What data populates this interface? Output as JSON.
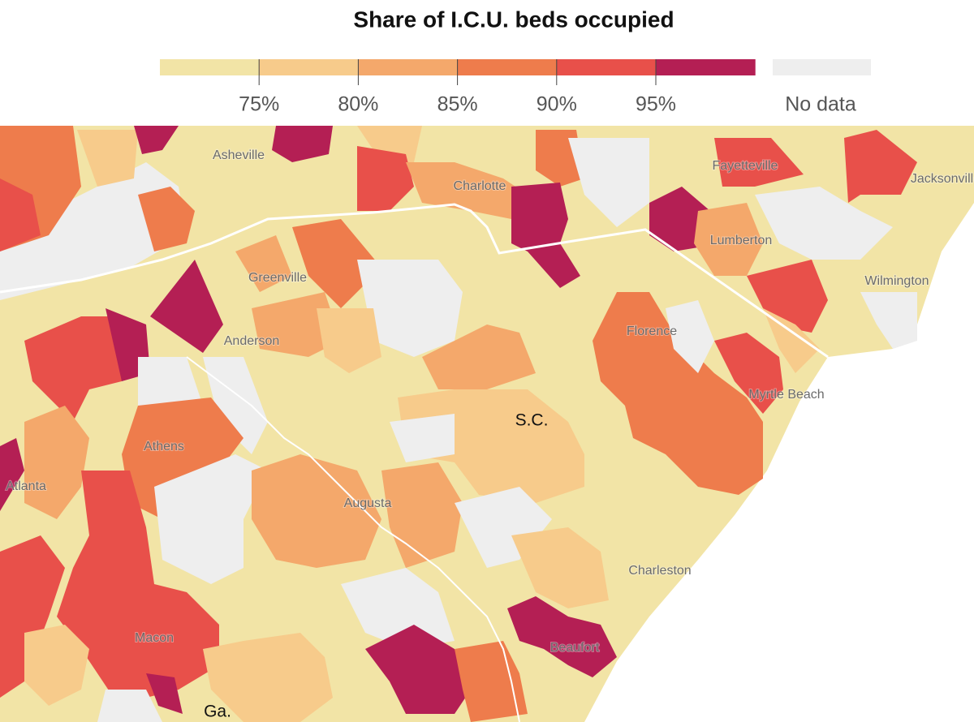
{
  "title": "Share of I.C.U. beds occupied",
  "legend": {
    "colors": [
      "#f2e4a6",
      "#f7cb8b",
      "#f4a86b",
      "#ee7c4c",
      "#e8504a",
      "#b41f54"
    ],
    "ticks": [
      "75%",
      "80%",
      "85%",
      "90%",
      "95%"
    ],
    "no_data": {
      "label": "No data",
      "color": "#eeeeee"
    }
  },
  "places": [
    {
      "label": "Asheville"
    },
    {
      "label": "Charlotte"
    },
    {
      "label": "Fayetteville"
    },
    {
      "label": "Jacksonville"
    },
    {
      "label": "Lumberton"
    },
    {
      "label": "Greenville"
    },
    {
      "label": "Wilmington"
    },
    {
      "label": "Anderson"
    },
    {
      "label": "Florence"
    },
    {
      "label": "Myrtle Beach"
    },
    {
      "label": "Athens"
    },
    {
      "label": "Atlanta"
    },
    {
      "label": "Augusta"
    },
    {
      "label": "Charleston"
    },
    {
      "label": "Beaufort"
    },
    {
      "label": "Macon"
    }
  ],
  "states": [
    "S.C.",
    "Ga."
  ]
}
